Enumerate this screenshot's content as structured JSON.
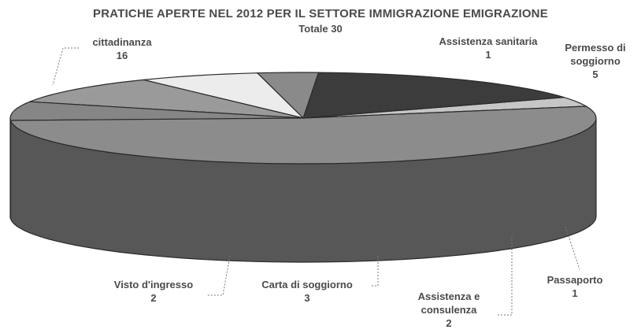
{
  "chart_data": {
    "type": "pie",
    "title": "PRATICHE APERTE NEL 2012 PER IL SETTORE IMMIGRAZIONE EMIGRAZIONE",
    "subtitle": "Totale 30",
    "slices": [
      {
        "label": "Assistenza sanitaria",
        "value": 1,
        "color": "#c6c6c6"
      },
      {
        "label": "Permesso di soggiorno",
        "value": 5,
        "color": "#3c3c3c"
      },
      {
        "label": "Passaporto",
        "value": 1,
        "color": "#8a8a8a"
      },
      {
        "label": "Assistenza e consulenza",
        "value": 2,
        "color": "#ececec"
      },
      {
        "label": "Carta di soggiorno",
        "value": 3,
        "color": "#9a9a9a"
      },
      {
        "label": "Visto d'ingresso",
        "value": 2,
        "color": "#868686"
      },
      {
        "label": "cittadinanza",
        "value": 16,
        "color": "#8c8c8c"
      }
    ]
  }
}
